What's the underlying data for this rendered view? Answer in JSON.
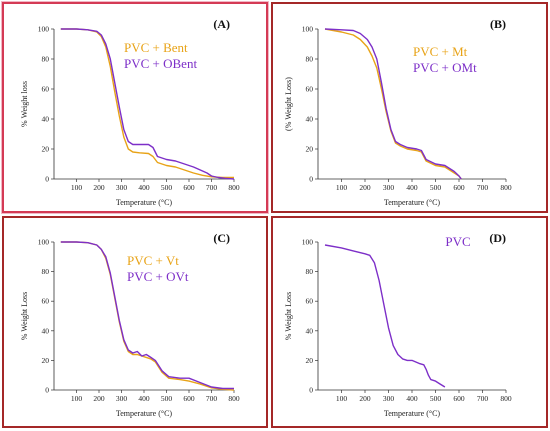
{
  "colors": {
    "orange": "#e8a317",
    "purple": "#7d2fc8",
    "frame_red": "#a42828",
    "frame_pink": "#d43a55"
  },
  "chart_data": [
    {
      "id": "A",
      "type": "line",
      "panel_label": "(A)",
      "xlabel": "Temperature (°C)",
      "ylabel": "% Weight loss",
      "xlim": [
        0,
        800
      ],
      "ylim": [
        0,
        100
      ],
      "xticks": [
        100,
        200,
        300,
        400,
        500,
        600,
        700,
        800
      ],
      "yticks": [
        0,
        20,
        40,
        60,
        80,
        100
      ],
      "grid": false,
      "legend": "top-right",
      "series": [
        {
          "name": "PVC + Bent",
          "color": "#e8a317",
          "x": [
            30,
            100,
            150,
            190,
            210,
            230,
            250,
            270,
            290,
            310,
            330,
            350,
            380,
            420,
            440,
            460,
            500,
            540,
            580,
            620,
            660,
            700,
            750,
            800
          ],
          "y": [
            100,
            100,
            99.5,
            98,
            95,
            88,
            75,
            58,
            42,
            28,
            20,
            18,
            17.5,
            17,
            15,
            11,
            9,
            8,
            6,
            4,
            2.5,
            1.5,
            1,
            1
          ]
        },
        {
          "name": "PVC + OBent",
          "color": "#7d2fc8",
          "x": [
            30,
            100,
            150,
            190,
            210,
            230,
            250,
            270,
            290,
            310,
            330,
            350,
            380,
            420,
            440,
            460,
            500,
            540,
            580,
            620,
            650,
            680,
            700,
            730,
            760,
            800
          ],
          "y": [
            100,
            100,
            99.5,
            98.5,
            96,
            90,
            80,
            64,
            48,
            33,
            25,
            23,
            23,
            23,
            21,
            15,
            13,
            12,
            10,
            8,
            6,
            4,
            2,
            1,
            0.5,
            0
          ]
        }
      ]
    },
    {
      "id": "B",
      "type": "line",
      "panel_label": "(B)",
      "xlabel": "Temperature (°C)",
      "ylabel": "(% Weight Loss)",
      "xlim": [
        0,
        800
      ],
      "ylim": [
        0,
        100
      ],
      "xticks": [
        100,
        200,
        300,
        400,
        500,
        600,
        700,
        800
      ],
      "yticks": [
        0,
        20,
        40,
        60,
        80,
        100
      ],
      "grid": false,
      "legend": "top-right",
      "series": [
        {
          "name": "PVC + Mt",
          "color": "#e8a317",
          "x": [
            30,
            100,
            150,
            180,
            210,
            230,
            250,
            270,
            290,
            310,
            330,
            350,
            380,
            420,
            440,
            460,
            500,
            540,
            560,
            580,
            600,
            610
          ],
          "y": [
            100,
            98,
            96,
            93,
            88,
            82,
            74,
            60,
            45,
            32,
            24,
            22,
            20,
            19,
            18,
            12,
            9,
            8,
            6,
            4,
            2,
            0
          ]
        },
        {
          "name": "PVC + OMt",
          "color": "#7d2fc8",
          "x": [
            30,
            100,
            150,
            180,
            210,
            230,
            250,
            270,
            290,
            310,
            330,
            350,
            380,
            420,
            440,
            460,
            500,
            540,
            560,
            580,
            600,
            610
          ],
          "y": [
            100,
            99.5,
            99,
            97,
            93,
            88,
            80,
            64,
            47,
            33,
            25,
            23,
            21,
            20,
            19,
            13,
            10,
            9,
            7,
            5,
            2,
            0
          ]
        }
      ]
    },
    {
      "id": "C",
      "type": "line",
      "panel_label": "(C)",
      "xlabel": "Temperature (°C)",
      "ylabel": "% Weight Loss",
      "xlim": [
        0,
        800
      ],
      "ylim": [
        0,
        100
      ],
      "xticks": [
        100,
        200,
        300,
        400,
        500,
        600,
        700,
        800
      ],
      "yticks": [
        0,
        20,
        40,
        60,
        80,
        100
      ],
      "grid": false,
      "legend": "top-right",
      "series": [
        {
          "name": "PVC + Vt",
          "color": "#e8a317",
          "x": [
            30,
            100,
            150,
            190,
            210,
            230,
            250,
            270,
            290,
            310,
            330,
            350,
            370,
            390,
            410,
            430,
            450,
            480,
            510,
            560,
            600,
            650,
            700,
            750,
            800
          ],
          "y": [
            100,
            100,
            99.5,
            98,
            95,
            89,
            78,
            62,
            46,
            33,
            26,
            24,
            24,
            23,
            22,
            21,
            19,
            12,
            8,
            7,
            6,
            4,
            1.5,
            0.5,
            0
          ]
        },
        {
          "name": "PVC + OVt",
          "color": "#7d2fc8",
          "x": [
            30,
            100,
            150,
            190,
            210,
            230,
            250,
            270,
            290,
            310,
            330,
            350,
            370,
            390,
            410,
            430,
            450,
            480,
            510,
            560,
            600,
            650,
            700,
            750,
            800
          ],
          "y": [
            100,
            100,
            99.5,
            98,
            95,
            90,
            79,
            63,
            47,
            34,
            27,
            25,
            26,
            23,
            24,
            22,
            20,
            13,
            9,
            8,
            8,
            5,
            2,
            1,
            1
          ]
        }
      ]
    },
    {
      "id": "D",
      "type": "line",
      "panel_label": "(D)",
      "xlabel": "Temperature (°C)",
      "ylabel": "% Weight Loss",
      "xlim": [
        0,
        800
      ],
      "ylim": [
        0,
        100
      ],
      "xticks": [
        100,
        200,
        300,
        400,
        500,
        600,
        700,
        800
      ],
      "yticks": [
        0,
        20,
        40,
        60,
        80,
        100
      ],
      "grid": false,
      "legend": "top-center",
      "series": [
        {
          "name": "PVC",
          "color": "#7d2fc8",
          "x": [
            30,
            100,
            150,
            200,
            220,
            240,
            260,
            280,
            300,
            320,
            340,
            360,
            380,
            400,
            430,
            450,
            460,
            470,
            480,
            500,
            520,
            540
          ],
          "y": [
            98,
            96,
            94,
            92,
            91,
            86,
            74,
            58,
            42,
            30,
            24,
            21,
            20,
            20,
            18,
            17,
            14,
            10,
            7,
            6,
            4,
            2
          ]
        }
      ]
    }
  ]
}
